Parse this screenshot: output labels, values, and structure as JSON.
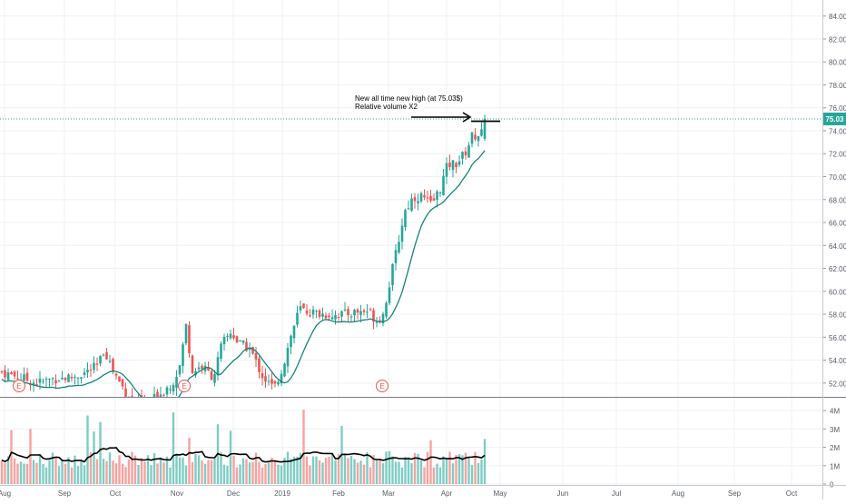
{
  "chart_data": {
    "type": "candlestick",
    "symbol_price_label": "75.03",
    "last_price": 75.03,
    "price_axis": {
      "ylim": [
        50.8,
        85.4
      ],
      "ticks": [
        "84.00",
        "82.00",
        "80.00",
        "78.00",
        "76.00",
        "74.00",
        "72.00",
        "70.00",
        "68.00",
        "66.00",
        "64.00",
        "62.00",
        "60.00",
        "58.00",
        "56.00",
        "54.00",
        "52.00"
      ]
    },
    "volume_axis": {
      "ylim": [
        0,
        4.6
      ],
      "ticks": [
        "4M",
        "3M",
        "2M",
        "1M",
        "0"
      ]
    },
    "x_axis": {
      "ticks": [
        "Aug",
        "Sep",
        "Oct",
        "Nov",
        "Dec",
        "2019",
        "Feb",
        "Mar",
        "Apr",
        "May",
        "Jun",
        "Jul",
        "Aug",
        "Sep",
        "Oct"
      ]
    },
    "annotation": {
      "line1": "New all time new high (at 75.03$)",
      "line2": "Relative volume X2"
    },
    "earnings_marker": "E",
    "colors": {
      "up": "#26a69a",
      "down": "#ef5350",
      "up_volume": "#7fccc4",
      "down_volume": "#f4a3a0",
      "moving_average": "#14837a",
      "volume_average": "#000000",
      "price_line": "#26a69a",
      "earnings": "#ef5350"
    }
  }
}
